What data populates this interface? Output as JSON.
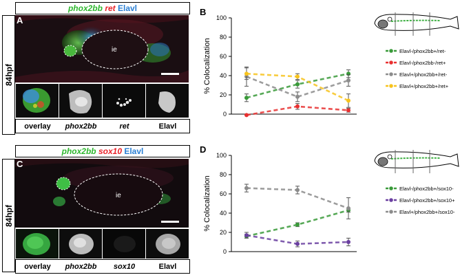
{
  "panelA": {
    "letter": "A",
    "header": {
      "g1": "phox2bb",
      "r1": "ret",
      "b1": "Elavl"
    },
    "stage": "84hpf",
    "organ_label": "ie",
    "thumb_labels": [
      "overlay",
      "phox2bb",
      "ret",
      "Elavl"
    ]
  },
  "panelC": {
    "letter": "C",
    "header": {
      "g1": "phox2bb",
      "r1": "sox10",
      "b1": "Elavl"
    },
    "stage": "84hpf",
    "organ_label": "ie",
    "thumb_labels": [
      "overlay",
      "phox2bb",
      "sox10",
      "Elavl"
    ]
  },
  "chart_data": [
    {
      "panel": "B",
      "type": "line",
      "ylabel": "% Colocalization",
      "ylim": [
        0,
        100
      ],
      "yticks": [
        0,
        20,
        40,
        60,
        80,
        100
      ],
      "x": [
        1,
        2,
        3
      ],
      "series": [
        {
          "name": "Elavl-/phox2bb+/ret-",
          "color": "#3a9a3a",
          "values": [
            17,
            31,
            42
          ],
          "err": [
            4,
            4,
            4
          ]
        },
        {
          "name": "Elavl-/phox2bb-/ret+",
          "color": "#e83030",
          "values": [
            -1,
            8,
            4
          ],
          "err": [
            0,
            3,
            2
          ]
        },
        {
          "name": "Elavl+/phox2bb+/ret-",
          "color": "#8c8c8c",
          "values": [
            39,
            18,
            35
          ],
          "err": [
            10,
            5,
            6
          ]
        },
        {
          "name": "Elavl+/phox2bb+/ret+",
          "color": "#f7c31d",
          "values": [
            42,
            39,
            14
          ],
          "err": [
            6,
            3,
            7
          ]
        }
      ]
    },
    {
      "panel": "D",
      "type": "line",
      "ylabel": "% Colocalization",
      "ylim": [
        0,
        100
      ],
      "yticks": [
        0,
        20,
        40,
        60,
        80,
        100
      ],
      "x": [
        1,
        2,
        3
      ],
      "series": [
        {
          "name": "Elavl-/phox2bb+/sox10-",
          "color": "#3a9a3a",
          "values": [
            16,
            28,
            43
          ],
          "err": [
            2,
            2,
            2
          ]
        },
        {
          "name": "Elavl-/phox2bb+/sox10+",
          "color": "#6a3fa0",
          "values": [
            17,
            8,
            10
          ],
          "err": [
            3,
            3,
            4
          ]
        },
        {
          "name": "Elavl+/phox2bb+/sox10-",
          "color": "#8c8c8c",
          "values": [
            66,
            64,
            45
          ],
          "err": [
            4,
            4,
            11
          ]
        }
      ]
    }
  ]
}
